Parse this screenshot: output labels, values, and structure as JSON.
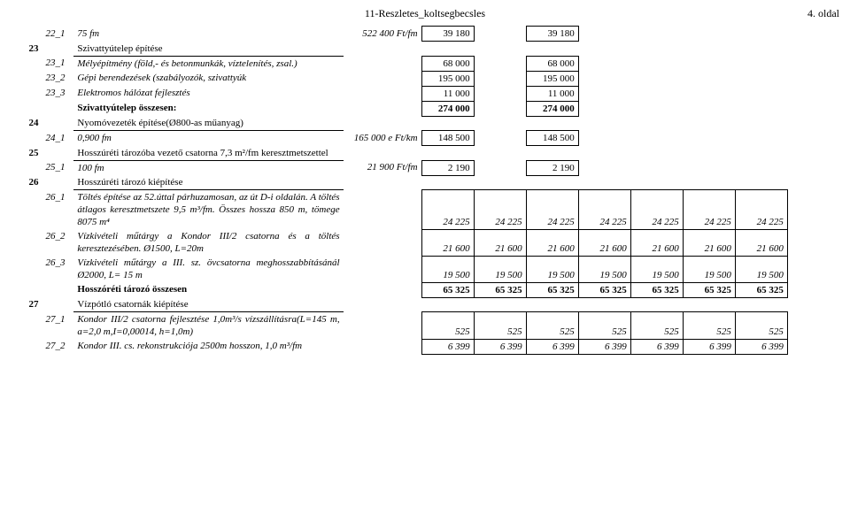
{
  "doc": {
    "title": "11-Reszletes_koltsegbecsles",
    "page": "4. oldal"
  },
  "rows": [
    {
      "sub": "22_1",
      "desc": "75 fm",
      "unit": "522 400 Ft/fm",
      "v1": "39 180",
      "v3": "39 180",
      "italic": true,
      "cell": true
    },
    {
      "num": "23",
      "desc": "Szivattyútelep építése",
      "plain": true,
      "bbDesc": true
    },
    {
      "sub": "23_1",
      "desc": "Mélyépítmény (föld,- és betonmunkák, víztelenítés, zsal.)",
      "unit": "",
      "v1": "68 000",
      "v3": "68 000",
      "italic": true,
      "cell": true
    },
    {
      "sub": "23_2",
      "desc": "Gépi berendezések (szabályozók, szivattyúk",
      "unit": "",
      "v1": "195 000",
      "v3": "195 000",
      "italic": true,
      "cell": true
    },
    {
      "sub": "23_3",
      "desc": "Elektromos hálózat fejlesztés",
      "unit": "",
      "v1": "11 000",
      "v3": "11 000",
      "italic": true,
      "cell": true
    },
    {
      "desc": "Szivattyútelep összesen:",
      "v1": "274 000",
      "v3": "274 000",
      "bold": true,
      "plain": true,
      "summaryCell": true
    },
    {
      "num": "24",
      "desc": "Nyomóvezeték építése(Ø800-as műanyag)",
      "plain": true,
      "bbDesc": true
    },
    {
      "sub": "24_1",
      "desc": "0,900 fm",
      "unit": "165 000 e Ft/km",
      "v1": "148 500",
      "v3": "148 500",
      "italic": true,
      "cell": true
    },
    {
      "num": "25",
      "desc": "Hosszúréti tározóba vezető csatorna 7,3 m²/fm keresztmetszettel",
      "plain": true,
      "bbDesc": true
    },
    {
      "sub": "25_1",
      "desc": "100 fm",
      "unit": "21 900 Ft/fm",
      "v1": "2 190",
      "v3": "2 190",
      "italic": true,
      "cell": true
    },
    {
      "num": "26",
      "desc": "Hosszúréti tározó kiépítése",
      "plain": true,
      "bbDesc": true
    },
    {
      "sub": "26_1",
      "desc": "Töltés építése az 52.úttal párhuzamosan, az út D-i oldalán. A töltés átlagos keresztmetszete 9,5 m³/fm. Összes hossza 850 m, tömege 8075 m⁴",
      "v1": "24 225",
      "v2": "24 225",
      "v3": "24 225",
      "v4": "24 225",
      "v5": "24 225",
      "v6": "24 225",
      "v7": "24 225",
      "italic": true,
      "cell8": true,
      "subAbove": true
    },
    {
      "sub": "26_2",
      "desc": "Vízkivételi műtárgy a Kondor III/2 csatorna és a töltés keresztezésében. Ø1500, L=20m",
      "v1": "21 600",
      "v2": "21 600",
      "v3": "21 600",
      "v4": "21 600",
      "v5": "21 600",
      "v6": "21 600",
      "v7": "21 600",
      "italic": true,
      "cell8": true
    },
    {
      "sub": "26_3",
      "desc": "Vízkivételi műtárgy a III. sz. övcsatorna meghosszabbításánál Ø2000, L= 15 m",
      "v1": "19 500",
      "v2": "19 500",
      "v3": "19 500",
      "v4": "19 500",
      "v5": "19 500",
      "v6": "19 500",
      "v7": "19 500",
      "italic": true,
      "cell8": true
    },
    {
      "desc": "Hosszóréti tározó összesen",
      "v1": "65 325",
      "v2": "65 325",
      "v3": "65 325",
      "v4": "65 325",
      "v5": "65 325",
      "v6": "65 325",
      "v7": "65 325",
      "bold": true,
      "plain": true,
      "summary8": true
    },
    {
      "num": "27",
      "desc": "Vízpótló csatornák kiépítése",
      "plain": true,
      "bbDesc": true
    },
    {
      "sub": "27_1",
      "desc": "Kondor III/2 csatorna fejlesztése 1,0m³/s vízszállításra(L=145 m, a=2,0 m,I=0,00014, h=1,0m)",
      "v1": "525",
      "v2": "525",
      "v3": "525",
      "v4": "525",
      "v5": "525",
      "v6": "525",
      "v7": "525",
      "italic": true,
      "cell8": true,
      "subAbove": true
    },
    {
      "sub": "27_2",
      "desc": "Kondor III. cs. rekonstrukciója 2500m hosszon, 1,0 m³/fm",
      "v1": "6 399",
      "v2": "6 399",
      "v3": "6 399",
      "v4": "6 399",
      "v5": "6 399",
      "v6": "6 399",
      "v7": "6 399",
      "italic": true,
      "cell8": true
    }
  ]
}
